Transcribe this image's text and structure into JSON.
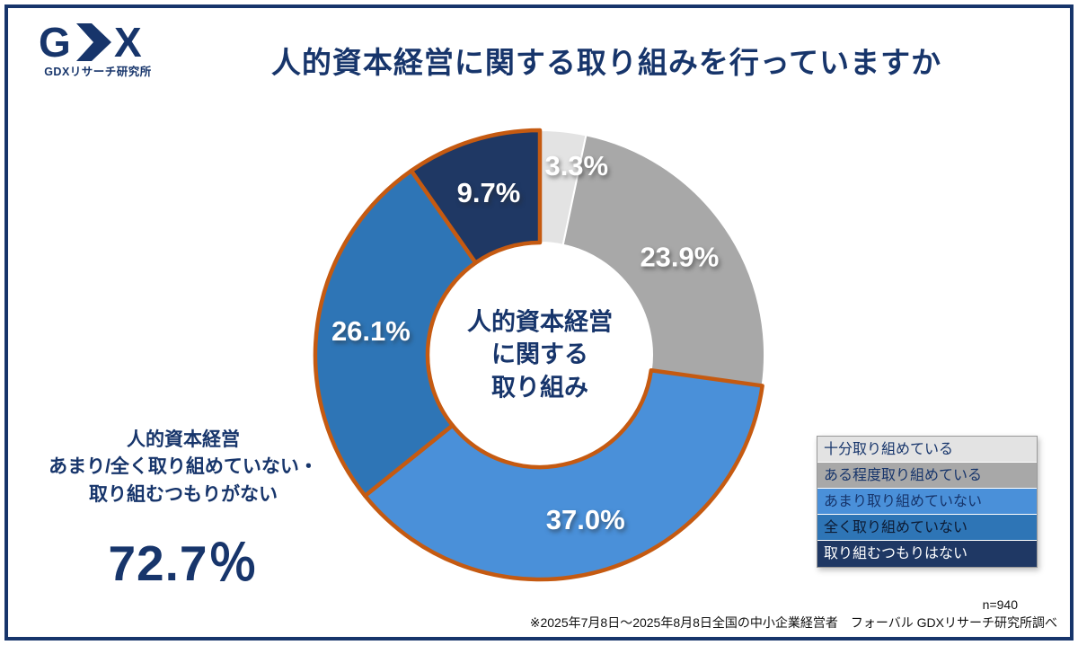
{
  "header": {
    "logo": {
      "g": "G",
      "x": "X",
      "subtitle": "GDXリサーチ研究所"
    },
    "title": "人的資本経営に関する取り組みを行っていますか"
  },
  "chart_data": {
    "type": "pie",
    "style": "donut",
    "title": "人的資本経営に関する取り組みを行っていますか",
    "center_label_lines": [
      "人的資本経営",
      "に関する",
      "取り組み"
    ],
    "start_angle_deg": 0,
    "direction": "clockwise",
    "categories": [
      "十分取り組めている",
      "ある程度取り組めている",
      "あまり取り組めていない",
      "全く取り組めていない",
      "取り組むつもりはない"
    ],
    "values": [
      3.3,
      23.9,
      37.0,
      26.1,
      9.7
    ],
    "labels": [
      "3.3%",
      "23.9%",
      "37.0%",
      "26.1%",
      "9.7%"
    ],
    "colors": [
      "#E3E3E3",
      "#A8A8A8",
      "#4A90D9",
      "#2E75B6",
      "#1F3864"
    ],
    "legend_text_colors": [
      "#17356B",
      "#17356B",
      "#17356B",
      "#0D1B33",
      "#FFFFFF"
    ],
    "highlighted": [
      false,
      false,
      true,
      true,
      true
    ],
    "highlight_color": "#C55A11",
    "legend_position": "right"
  },
  "annotation": {
    "lines": [
      "人的資本経営",
      "あまり/全く取り組めていない・",
      "取り組むつもりがない"
    ],
    "value": "72.7％"
  },
  "footer": {
    "sample_size": "n=940",
    "note": "※2025年7月8日〜2025年8月8日全国の中小企業経営者　フォーバル GDXリサーチ研究所調べ"
  },
  "theme": {
    "accent_navy": "#17356B",
    "highlight_orange": "#C55A11",
    "frame_border": "#17356B"
  }
}
